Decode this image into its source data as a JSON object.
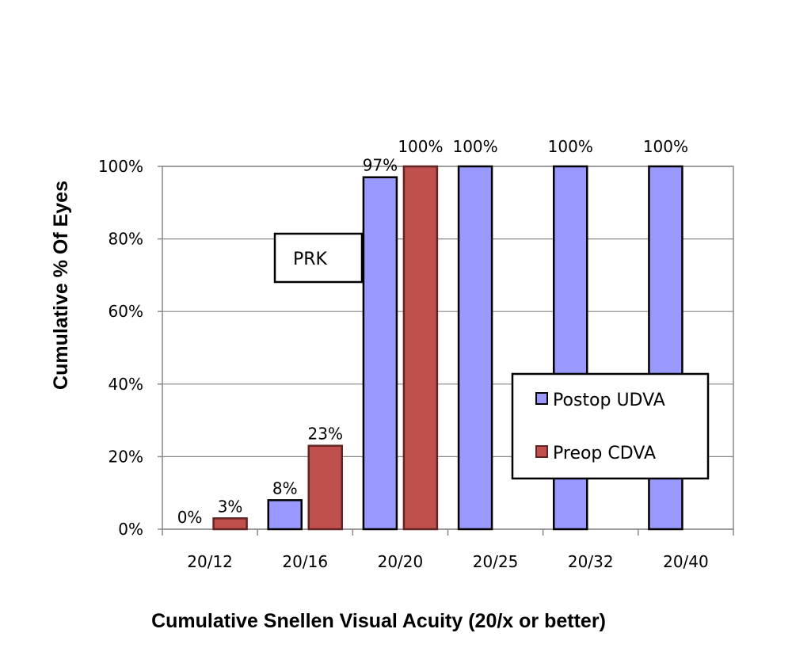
{
  "chart_data": {
    "type": "bar",
    "title": "",
    "xlabel": "Cumulative Snellen Visual Acuity (20/x or better)",
    "ylabel": "Cumulative % Of Eyes",
    "ylim": [
      0,
      100
    ],
    "yticks": [
      "0%",
      "20%",
      "40%",
      "60%",
      "80%",
      "100%"
    ],
    "ytick_values": [
      0,
      20,
      40,
      60,
      80,
      100
    ],
    "grid": true,
    "categories": [
      "20/12",
      "20/16",
      "20/20",
      "20/25",
      "20/32",
      "20/40"
    ],
    "series": [
      {
        "name": "Postop UDVA",
        "color": "#9999ff",
        "stroke": "#000000",
        "values": [
          0,
          8,
          97,
          100,
          100,
          100
        ],
        "labels": [
          "0%",
          "8%",
          "97%",
          "100%",
          "100%",
          "100%"
        ]
      },
      {
        "name": "Preop CDVA",
        "color": "#c0504d",
        "stroke": "#632523",
        "values": [
          3,
          23,
          100,
          null,
          null,
          null
        ],
        "labels": [
          "3%",
          "23%",
          "100%",
          null,
          null,
          null
        ]
      }
    ],
    "legend_position": "lower-right",
    "annotation": "PRK"
  }
}
